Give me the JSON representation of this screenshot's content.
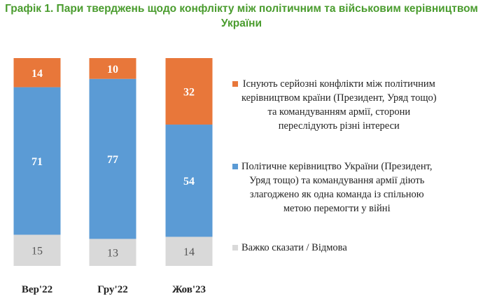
{
  "title_lines": [
    "Графік 1. Пари тверджень щодо конфлікту між політичним та військовим керівництвом",
    "України"
  ],
  "colors": {
    "title": "#4a9c2e",
    "conflict": "#e8773a",
    "together": "#5b9bd5",
    "hard_to_say": "#d9d9d9"
  },
  "chart_data": {
    "type": "bar",
    "stacked": true,
    "title": "Графік 1. Пари тверджень щодо конфлікту між політичним та військовим керівництвом України",
    "categories": [
      "Вер'22",
      "Гру'22",
      "Жов'23"
    ],
    "series": [
      {
        "name": "Важко сказати / Відмова",
        "values": [
          15,
          13,
          14
        ],
        "color": "#d9d9d9",
        "label_color": "#555555"
      },
      {
        "name": "Політичне керівництво України (Президент, Уряд тощо) та командування армії діють злагоджено як одна команда із спільною метою перемогти у війні",
        "values": [
          71,
          77,
          54
        ],
        "color": "#5b9bd5",
        "label_color": "#ffffff"
      },
      {
        "name": "Існують серйозні конфлікти між політичним керівництвом країни (Президент, Уряд тощо) та командуванням армії, сторони переслідують різні інтереси",
        "values": [
          14,
          10,
          32
        ],
        "color": "#e8773a",
        "label_color": "#ffffff"
      }
    ],
    "ylim": [
      0,
      100
    ],
    "grid": false,
    "legend_position": "right"
  },
  "legend": [
    {
      "color": "#e8773a",
      "lines": [
        "Існують серйозні конфлікти між політичним",
        "керівництвом країни (Президент, Уряд тощо)",
        "та командуванням армії, сторони",
        "переслідують різні інтереси"
      ]
    },
    {
      "color": "#5b9bd5",
      "lines": [
        "Політичне керівництво України (Президент,",
        "Уряд тощо) та командування армії діють",
        "злагоджено як одна команда із спільною",
        "метою перемогти у війні"
      ]
    },
    {
      "color": "#d9d9d9",
      "lines": [
        "Важко сказати / Відмова"
      ]
    }
  ]
}
